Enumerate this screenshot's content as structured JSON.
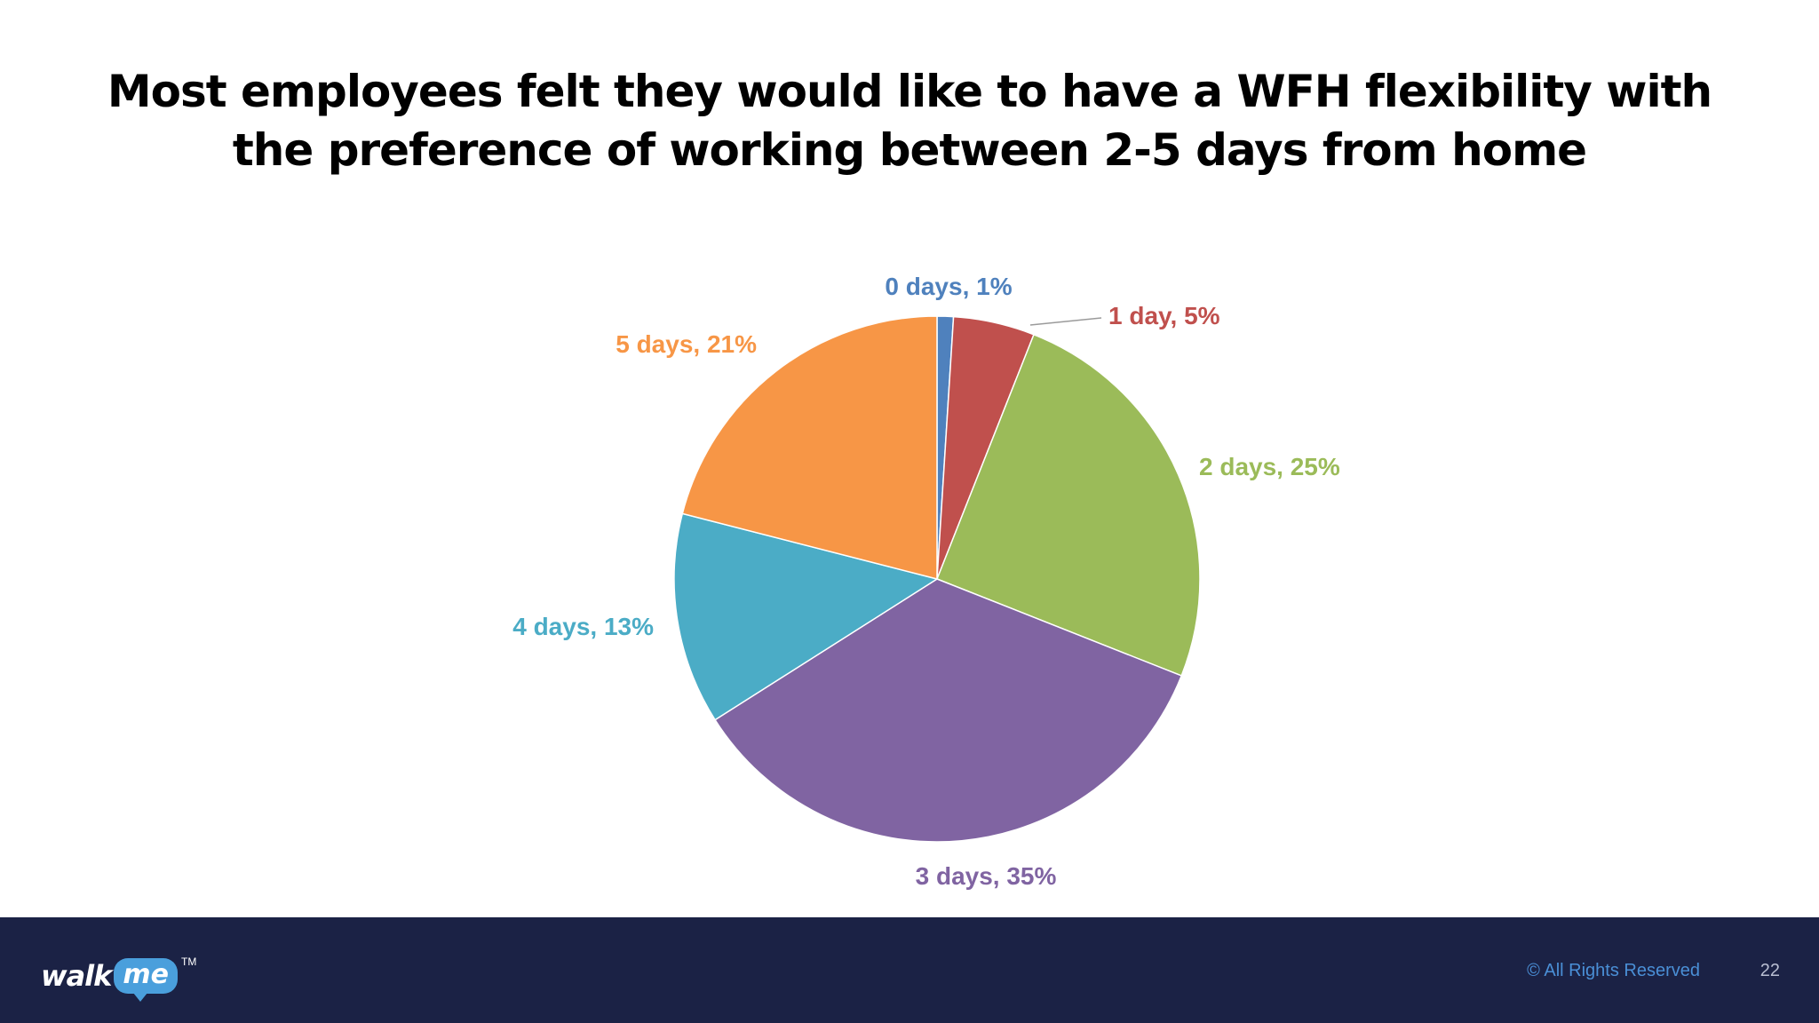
{
  "slide": {
    "title_line1": "Most employees felt they would like to have a WFH flexibility with",
    "title_line2": "the preference of working between 2-5 days from home"
  },
  "chart_data": {
    "type": "pie",
    "title": "",
    "slices": [
      {
        "label": "0 days, 1%",
        "category": "0 days",
        "value": 1,
        "color": "#4f81bd",
        "label_color": "#4f81bd"
      },
      {
        "label": "1 day, 5%",
        "category": "1 day",
        "value": 5,
        "color": "#c0504d",
        "label_color": "#c0504d"
      },
      {
        "label": "2 days, 25%",
        "category": "2 days",
        "value": 25,
        "color": "#9bbb59",
        "label_color": "#9bbb59"
      },
      {
        "label": "3 days, 35%",
        "category": "3 days",
        "value": 35,
        "color": "#8064a2",
        "label_color": "#8064a2"
      },
      {
        "label": "4 days, 13%",
        "category": "4 days",
        "value": 13,
        "color": "#4bacc6",
        "label_color": "#4bacc6"
      },
      {
        "label": "5 days, 21%",
        "category": "5 days",
        "value": 21,
        "color": "#f79646",
        "label_color": "#f79646"
      }
    ],
    "legend": "none",
    "data_labels": "outside"
  },
  "footer": {
    "logo_text_walk": "walk",
    "logo_text_me": "me",
    "logo_tm": "TM",
    "copyright": "© All Rights Reserved",
    "page_number": "22",
    "background_color": "#1b2245"
  }
}
